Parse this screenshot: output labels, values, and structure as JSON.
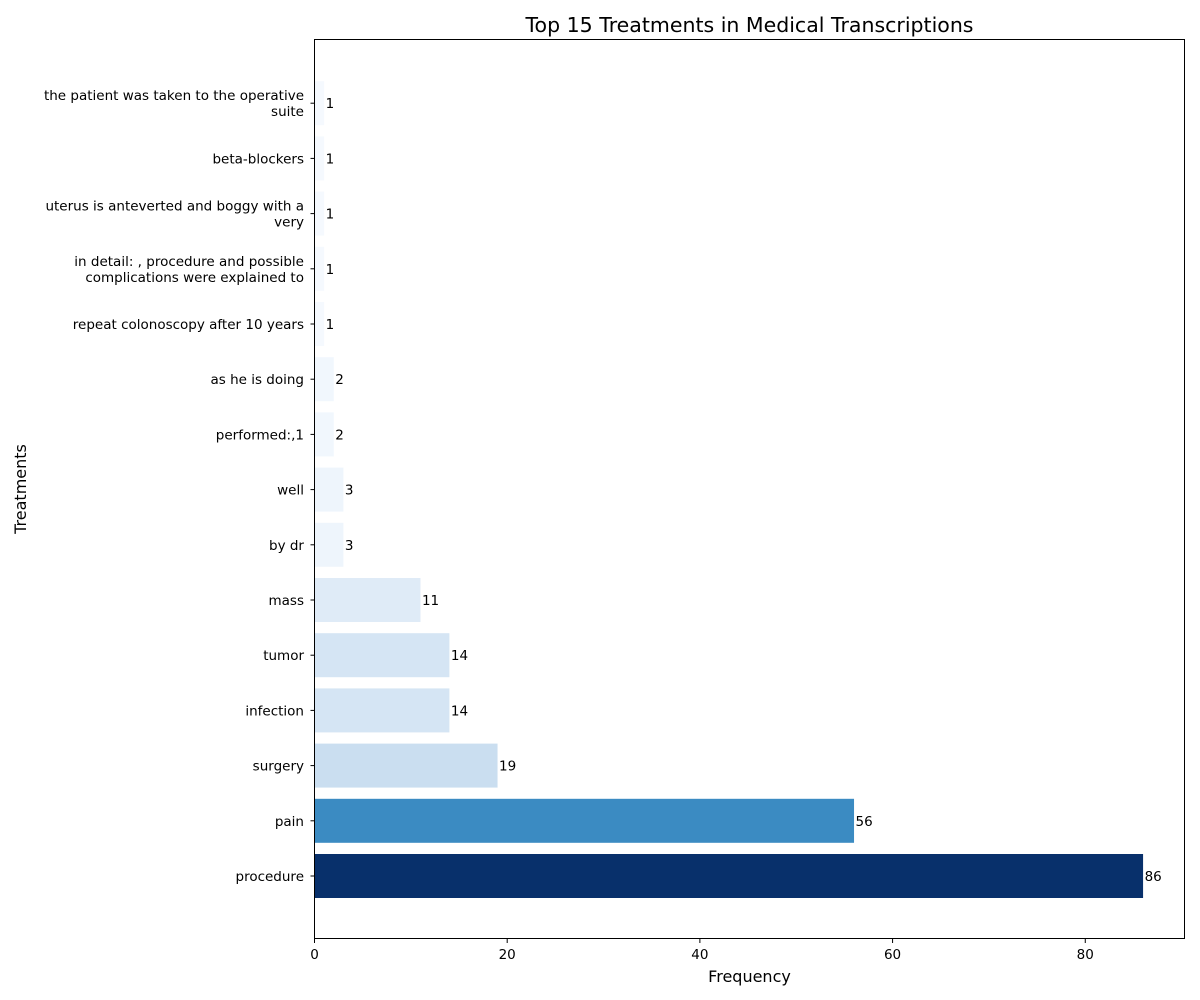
{
  "chart_data": {
    "type": "bar",
    "orientation": "horizontal",
    "title": "Top 15 Treatments in Medical Transcriptions",
    "xlabel": "Frequency",
    "ylabel": "Treatments",
    "xlim": [
      0,
      90.3
    ],
    "xticks": [
      0,
      20,
      40,
      60,
      80
    ],
    "grid": false,
    "categories": [
      "procedure",
      "pain",
      "surgery",
      "infection",
      "tumor",
      "mass",
      "by dr",
      "well",
      "performed:,1",
      "as he is doing",
      "repeat colonoscopy after 10 years",
      "in detail: , procedure and possible\ncomplications were explained to",
      "uterus is anteverted and boggy with a\nvery",
      "beta-blockers",
      "the patient was taken to the operative\nsuite"
    ],
    "values": [
      86,
      56,
      19,
      14,
      14,
      11,
      3,
      3,
      2,
      2,
      1,
      1,
      1,
      1,
      1
    ],
    "colors": [
      "#08306b",
      "#3b8bc2",
      "#cadef0",
      "#d5e5f4",
      "#d5e5f4",
      "#dfebf7",
      "#eef5fc",
      "#eef5fc",
      "#f1f7fd",
      "#f1f7fd",
      "#f5f9fe",
      "#f5f9fe",
      "#f5f9fe",
      "#f5f9fe",
      "#f5f9fe"
    ]
  }
}
